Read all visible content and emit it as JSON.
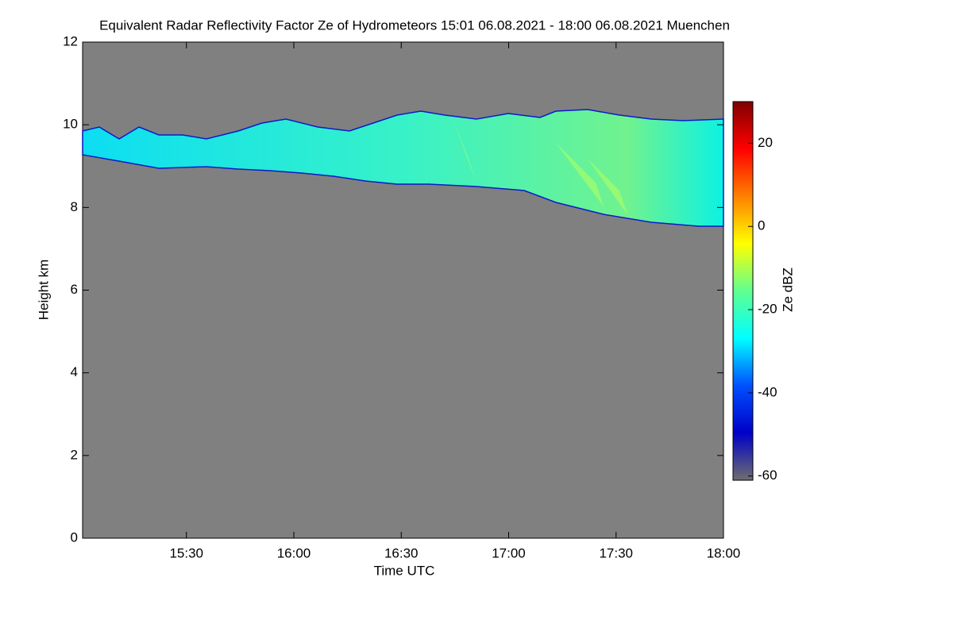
{
  "chart_data": {
    "type": "heatmap",
    "title": "Equivalent Radar Reflectivity Factor Ze of Hydrometeors   15:01 06.08.2021 - 18:00 06.08.2021 Muenchen",
    "xlabel": "Time UTC",
    "ylabel": "Height km",
    "colorbar_label": "Ze dBZ",
    "xlim": [
      15.0167,
      18.0
    ],
    "xticks": [
      {
        "value": 15.5,
        "label": "15:30"
      },
      {
        "value": 16.0,
        "label": "16:00"
      },
      {
        "value": 16.5,
        "label": "16:30"
      },
      {
        "value": 17.0,
        "label": "17:00"
      },
      {
        "value": 17.5,
        "label": "17:30"
      },
      {
        "value": 18.0,
        "label": "18:00"
      }
    ],
    "ylim": [
      0,
      12
    ],
    "yticks": [
      0,
      2,
      4,
      6,
      8,
      10,
      12
    ],
    "clim": [
      -61,
      30
    ],
    "cticks": [
      -60,
      -40,
      -20,
      0,
      20
    ],
    "colormap": [
      "#6e6e6e",
      "#0000c8",
      "#0050ff",
      "#00ffff",
      "#60ff90",
      "#ffff00",
      "#ff8000",
      "#ff0000",
      "#800000"
    ],
    "background": "#808080"
  }
}
